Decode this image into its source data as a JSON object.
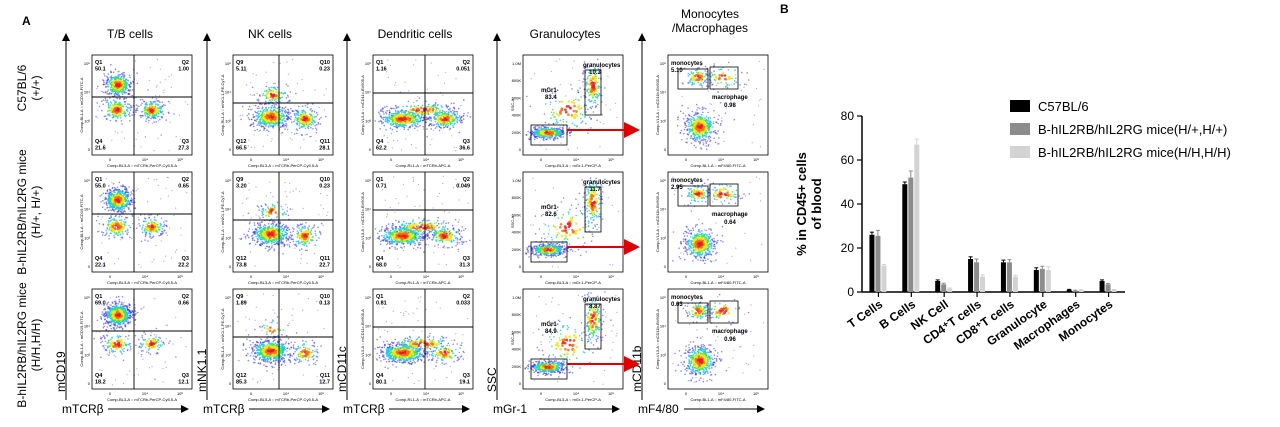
{
  "panel_labels": {
    "a": "A",
    "b": "B"
  },
  "flow": {
    "column_titles": [
      "T/B cells",
      "NK cells",
      "Dendritic cells",
      "Granulocytes",
      "Monocytes\n/Macrophages"
    ],
    "row_labels": [
      "C57BL/6\n(+/+)",
      "B-hIL2RB/hIL2RG mice\n(H/+, H/+)",
      "B-hIL2RB/hIL2RG mice\n(H/H,H/H)"
    ],
    "y_axis_labels": [
      "mCD19",
      "mNK1.1",
      "mCD11c",
      "SSC",
      "mCD11b"
    ],
    "x_axis_labels": [
      "mTCRβ",
      "mTCRβ",
      "mTCRβ",
      "mGr-1",
      "mF4/80"
    ],
    "plot_x_titles": [
      "Comp-BL3-A :: mTCRb-PerCP-Cy5.5-A",
      "Comp-BL3-A :: mTCRb-PerCP-Cy5.5-A",
      "Comp-RL1-A :: mTCRb-APC-A",
      "Comp-BL3-A :: mGr-1-PerCP-A",
      "Comp-BL1-A :: mF4/80-FITC-A"
    ],
    "plot_y_titles": [
      "Comp-BL1-A :: mCD19-FITC-A",
      "Comp-RL1-A :: mNK1.1-PE-Cy7-A",
      "Comp-VL3-A :: mCD11c-BV605-A",
      "SSC-A",
      "Comp-VL3-A :: mCD11b-BV605-A"
    ],
    "tick_labels_x": [
      "0",
      "10⁴",
      "10⁵"
    ],
    "tick_labels_y": [
      "10⁵",
      "10⁴",
      "10³",
      "0"
    ],
    "ssc_ticks": [
      "1.0M",
      "800K",
      "600K",
      "400K",
      "200K",
      "0"
    ],
    "quads": {
      "tb": [
        [
          [
            "Q1",
            "50.1"
          ],
          [
            "Q2",
            "1.00"
          ],
          [
            "Q4",
            "21.6"
          ],
          [
            "Q3",
            "27.3"
          ]
        ],
        [
          [
            "Q1",
            "55.0"
          ],
          [
            "Q2",
            "0.65"
          ],
          [
            "Q4",
            "22.1"
          ],
          [
            "Q3",
            "22.2"
          ]
        ],
        [
          [
            "Q1",
            "69.0"
          ],
          [
            "Q2",
            "0.66"
          ],
          [
            "Q4",
            "18.2"
          ],
          [
            "Q3",
            "12.1"
          ]
        ]
      ],
      "nk": [
        [
          [
            "Q9",
            "5.11"
          ],
          [
            "Q10",
            "0.23"
          ],
          [
            "Q12",
            "66.5"
          ],
          [
            "Q11",
            "28.1"
          ]
        ],
        [
          [
            "Q9",
            "3.20"
          ],
          [
            "Q10",
            "0.23"
          ],
          [
            "Q12",
            "73.8"
          ],
          [
            "Q11",
            "22.7"
          ]
        ],
        [
          [
            "Q9",
            "1.89"
          ],
          [
            "Q10",
            "0.13"
          ],
          [
            "Q12",
            "85.3"
          ],
          [
            "Q11",
            "12.7"
          ]
        ]
      ],
      "dc": [
        [
          [
            "Q1",
            "1.16"
          ],
          [
            "Q2",
            "0.051"
          ],
          [
            "Q4",
            "62.2"
          ],
          [
            "Q3",
            "36.6"
          ]
        ],
        [
          [
            "Q1",
            "0.71"
          ],
          [
            "Q2",
            "0.049"
          ],
          [
            "Q4",
            "68.0"
          ],
          [
            "Q3",
            "31.3"
          ]
        ],
        [
          [
            "Q1",
            "0.81"
          ],
          [
            "Q2",
            "0.033"
          ],
          [
            "Q4",
            "80.1"
          ],
          [
            "Q3",
            "19.1"
          ]
        ]
      ]
    },
    "granulocytes": [
      {
        "gate1": "granulocytes",
        "v1": "10.3",
        "gate2": "mGr1-",
        "v2": "83.4"
      },
      {
        "gate1": "granulocytes",
        "v1": "11.7",
        "gate2": "mGr1-",
        "v2": "82.6"
      },
      {
        "gate1": "granulocytes",
        "v1": "8.87",
        "gate2": "mGr1-",
        "v2": "84.9"
      }
    ],
    "monocytes": [
      {
        "gate1": "monocytes",
        "v1": "5.10",
        "gate2": "macrophage",
        "v2": "0.98"
      },
      {
        "gate1": "monocytes",
        "v1": "2.95",
        "gate2": "macrophage",
        "v2": "0.64"
      },
      {
        "gate1": "monocytes",
        "v1": "0.63",
        "gate2": "macrophage",
        "v2": "0.96"
      }
    ]
  },
  "chart_data": {
    "type": "bar",
    "title": "",
    "ylabel": "% in CD45+ cells\nof blood",
    "xlabel": "",
    "ylim": [
      0,
      80
    ],
    "yticks": [
      0,
      20,
      40,
      60,
      80
    ],
    "categories": [
      "T Cells",
      "B Cells",
      "NK Cell",
      "CD4⁺T cells",
      "CD8⁺T cells",
      "Granulocyte",
      "Macrophages",
      "Monocytes"
    ],
    "series": [
      {
        "name": "C57BL/6",
        "color": "#000000",
        "values": [
          26,
          49,
          5,
          15,
          13.5,
          10,
          1,
          5
        ],
        "errors": [
          1.2,
          1.0,
          0.5,
          1.0,
          1.0,
          1.0,
          0.2,
          0.5
        ]
      },
      {
        "name": "B-hIL2RB/hIL2RG mice(H/+,H/+)",
        "color": "#8c8c8c",
        "values": [
          25.5,
          52,
          3.5,
          13.5,
          13.5,
          10.5,
          0.6,
          3.5
        ],
        "errors": [
          2.5,
          3.0,
          0.5,
          1.5,
          1.2,
          1.2,
          0.2,
          0.4
        ]
      },
      {
        "name": "B-hIL2RB/hIL2RG mice(H/H,H/H)",
        "color": "#d3d3d3",
        "values": [
          12,
          67,
          1.5,
          7,
          7,
          10,
          0.9,
          1.0
        ],
        "errors": [
          0.5,
          2.5,
          0.3,
          0.8,
          0.6,
          1.5,
          0.2,
          0.2
        ]
      }
    ],
    "legend_position": "top-right",
    "grid": false
  }
}
